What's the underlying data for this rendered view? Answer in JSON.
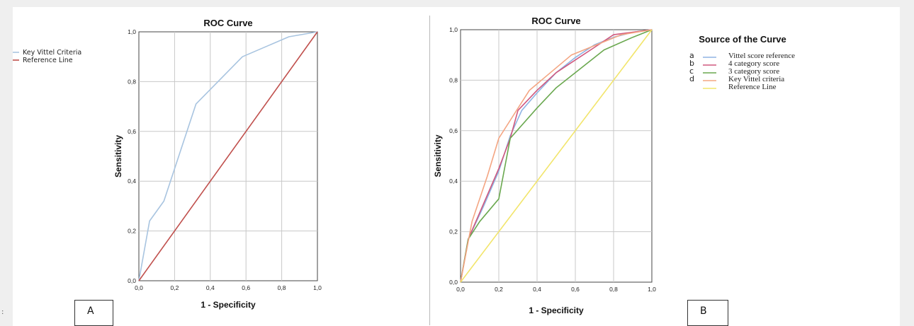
{
  "stray_mark": ":",
  "chart_data": [
    {
      "type": "line",
      "panel_label": "A",
      "title": "ROC Curve",
      "xlabel": "1 - Specificity",
      "ylabel": "Sensitivity",
      "xlim": [
        0,
        1
      ],
      "ylim": [
        0,
        1
      ],
      "grid": true,
      "x_ticks": [
        "0,0",
        "0,2",
        "0,4",
        "0,6",
        "0,8",
        "1,0"
      ],
      "y_ticks": [
        "0,0",
        "0,2",
        "0,4",
        "0,6",
        "0,8",
        "1,0"
      ],
      "legend_position": "top-left",
      "series": [
        {
          "name": "Key Vittel Criteria",
          "color": "#a8c4e0",
          "x": [
            0,
            0.06,
            0.14,
            0.32,
            0.58,
            0.84,
            1.0
          ],
          "y": [
            0,
            0.24,
            0.32,
            0.71,
            0.9,
            0.98,
            1.0
          ]
        },
        {
          "name": "Reference Line",
          "color": "#c0504d",
          "x": [
            0,
            1
          ],
          "y": [
            0,
            1
          ]
        }
      ]
    },
    {
      "type": "line",
      "panel_label": "B",
      "title": "ROC Curve",
      "xlabel": "1 - Specificity",
      "ylabel": "Sensitivity",
      "xlim": [
        0,
        1
      ],
      "ylim": [
        0,
        1
      ],
      "grid": true,
      "x_ticks": [
        "0,0",
        "0,2",
        "0,4",
        "0,6",
        "0,8",
        "1,0"
      ],
      "y_ticks": [
        "0,0",
        "0,2",
        "0,4",
        "0,6",
        "0,8",
        "1,0"
      ],
      "legend_title": "Source of the Curve",
      "legend_position": "right",
      "series": [
        {
          "letter": "a",
          "name": "Vittel score reference",
          "color": "#8fb4e3",
          "x": [
            0,
            0.04,
            0.12,
            0.2,
            0.26,
            0.32,
            0.4,
            0.5,
            0.6,
            0.7,
            0.8,
            0.9,
            1.0
          ],
          "y": [
            0,
            0.17,
            0.3,
            0.44,
            0.58,
            0.68,
            0.75,
            0.83,
            0.89,
            0.94,
            0.97,
            0.99,
            1.0
          ]
        },
        {
          "letter": "b",
          "name": "4 category score",
          "color": "#d0587e",
          "x": [
            0,
            0.04,
            0.12,
            0.2,
            0.26,
            0.3,
            0.4,
            0.5,
            0.6,
            0.7,
            0.8,
            0.9,
            1.0
          ],
          "y": [
            0,
            0.17,
            0.31,
            0.45,
            0.57,
            0.68,
            0.76,
            0.83,
            0.88,
            0.93,
            0.98,
            0.99,
            1.0
          ]
        },
        {
          "letter": "c",
          "name": "3 category score",
          "color": "#6aa84f",
          "x": [
            0,
            0.04,
            0.1,
            0.2,
            0.26,
            0.4,
            0.5,
            0.6,
            0.75,
            0.9,
            1.0
          ],
          "y": [
            0,
            0.17,
            0.24,
            0.33,
            0.57,
            0.69,
            0.77,
            0.83,
            0.92,
            0.97,
            1.0
          ]
        },
        {
          "letter": "d",
          "name": "Key Vittel criteria",
          "color": "#f4a582",
          "x": [
            0,
            0.06,
            0.14,
            0.2,
            0.36,
            0.58,
            0.84,
            1.0
          ],
          "y": [
            0,
            0.24,
            0.42,
            0.57,
            0.76,
            0.9,
            0.98,
            1.0
          ]
        },
        {
          "letter": "",
          "name": "Reference Line",
          "color": "#f2e56b",
          "x": [
            0,
            1
          ],
          "y": [
            0,
            1
          ]
        }
      ]
    }
  ]
}
